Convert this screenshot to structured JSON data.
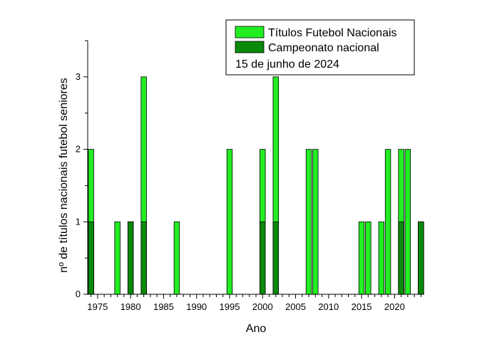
{
  "chart_data": {
    "type": "bar",
    "stacked": true,
    "xlabel": "Ano",
    "ylabel": "nº de títulos nacionais futebol seniores",
    "xlim": [
      1973.5,
      2024.5
    ],
    "ylim": [
      0,
      3.5
    ],
    "x_ticks": [
      1975,
      1980,
      1985,
      1990,
      1995,
      2000,
      2005,
      2010,
      2015,
      2020
    ],
    "y_ticks": [
      0,
      1,
      2,
      3
    ],
    "legend_position": "top-right",
    "legend_note": "15 de junho de 2024",
    "series": [
      {
        "name": "Títulos Futebol Nacionais",
        "color": "#22ee22",
        "points": [
          {
            "x": 1974,
            "y": 2
          },
          {
            "x": 1978,
            "y": 1
          },
          {
            "x": 1980,
            "y": 1
          },
          {
            "x": 1982,
            "y": 3
          },
          {
            "x": 1987,
            "y": 1
          },
          {
            "x": 1995,
            "y": 2
          },
          {
            "x": 2000,
            "y": 2
          },
          {
            "x": 2002,
            "y": 3
          },
          {
            "x": 2007,
            "y": 2
          },
          {
            "x": 2008,
            "y": 2
          },
          {
            "x": 2015,
            "y": 1
          },
          {
            "x": 2016,
            "y": 1
          },
          {
            "x": 2018,
            "y": 1
          },
          {
            "x": 2019,
            "y": 2
          },
          {
            "x": 2021,
            "y": 2
          },
          {
            "x": 2022,
            "y": 2
          },
          {
            "x": 2024,
            "y": 1
          }
        ]
      },
      {
        "name": "Campeonato nacional",
        "color": "#0a8a0a",
        "points": [
          {
            "x": 1974,
            "y": 1
          },
          {
            "x": 1980,
            "y": 1
          },
          {
            "x": 1982,
            "y": 1
          },
          {
            "x": 2000,
            "y": 1
          },
          {
            "x": 2002,
            "y": 1
          },
          {
            "x": 2021,
            "y": 1
          },
          {
            "x": 2024,
            "y": 1
          }
        ]
      }
    ]
  }
}
